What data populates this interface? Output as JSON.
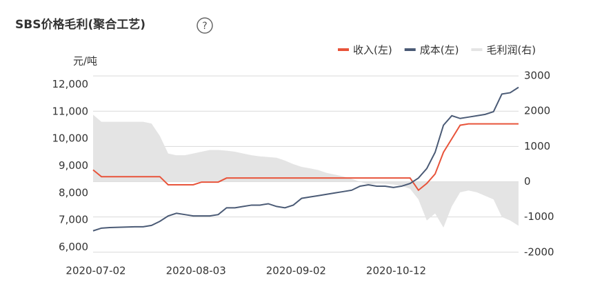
{
  "chart_data": {
    "type": "line",
    "title": "SBS价格毛利(聚合工艺)",
    "help_icon": "?",
    "y_unit": "元/吨",
    "categories": [
      "2020-07-02",
      null,
      null,
      null,
      null,
      null,
      null,
      null,
      null,
      null,
      null,
      null,
      "2020-08-03",
      null,
      null,
      null,
      null,
      null,
      null,
      null,
      null,
      null,
      null,
      null,
      "2020-09-02",
      null,
      null,
      null,
      null,
      null,
      null,
      null,
      null,
      null,
      null,
      null,
      "2020-10-12",
      null,
      null,
      null,
      null,
      null,
      null,
      null,
      null,
      null,
      null,
      null,
      null,
      null,
      null,
      null
    ],
    "series": [
      {
        "name": "收入(左)",
        "color": "#e8533a",
        "kind": "line",
        "values": [
          8850,
          8600,
          8600,
          8600,
          8600,
          8600,
          8600,
          8600,
          8600,
          8300,
          8300,
          8300,
          8300,
          8400,
          8400,
          8400,
          8550,
          8550,
          8550,
          8550,
          8550,
          8550,
          8550,
          8550,
          8550,
          8550,
          8550,
          8550,
          8550,
          8550,
          8550,
          8550,
          8550,
          8550,
          8550,
          8550,
          8550,
          8550,
          8550,
          8100,
          8350,
          8700,
          9500,
          10000,
          10500,
          10550,
          10550,
          10550,
          10550,
          10550,
          10550,
          10550
        ]
      },
      {
        "name": "成本(左)",
        "color": "#4a5a75",
        "kind": "line",
        "values": [
          6600,
          6700,
          6720,
          6730,
          6740,
          6750,
          6750,
          6800,
          6950,
          7150,
          7250,
          7200,
          7150,
          7150,
          7150,
          7200,
          7450,
          7450,
          7500,
          7550,
          7550,
          7600,
          7500,
          7450,
          7550,
          7800,
          7850,
          7900,
          7950,
          8000,
          8050,
          8100,
          8250,
          8300,
          8250,
          8250,
          8200,
          8250,
          8350,
          8550,
          8900,
          9500,
          10500,
          10850,
          10750,
          10800,
          10850,
          10900,
          11000,
          11650,
          11700,
          11900
        ]
      },
      {
        "name": "毛利润(右)",
        "color": "#e4e4e4",
        "kind": "area",
        "axis": "y2",
        "values": [
          1900,
          1700,
          1700,
          1700,
          1700,
          1700,
          1700,
          1650,
          1300,
          800,
          750,
          750,
          800,
          850,
          900,
          900,
          880,
          850,
          800,
          750,
          720,
          700,
          680,
          600,
          500,
          420,
          380,
          330,
          250,
          200,
          150,
          80,
          0,
          -80,
          -50,
          -60,
          -80,
          -120,
          -200,
          -500,
          -1100,
          -900,
          -1300,
          -700,
          -300,
          -250,
          -300,
          -400,
          -500,
          -1000,
          -1100,
          -1250
        ]
      }
    ],
    "ylim": [
      5550,
      12450
    ],
    "yticks": [
      {
        "value": 6000,
        "label": "6,000"
      },
      {
        "value": 7000,
        "label": "7,000"
      },
      {
        "value": 8000,
        "label": "8,000"
      },
      {
        "value": 9000,
        "label": "9,000"
      },
      {
        "value": 10000,
        "label": "10,000"
      },
      {
        "value": 11000,
        "label": "11,000"
      },
      {
        "value": 12000,
        "label": "12,000"
      }
    ],
    "y2lim": [
      -2200,
      3100
    ],
    "y2ticks": [
      -2000,
      -1000,
      0,
      1000,
      2000,
      3000
    ],
    "grid": true,
    "legend": "top-right"
  }
}
